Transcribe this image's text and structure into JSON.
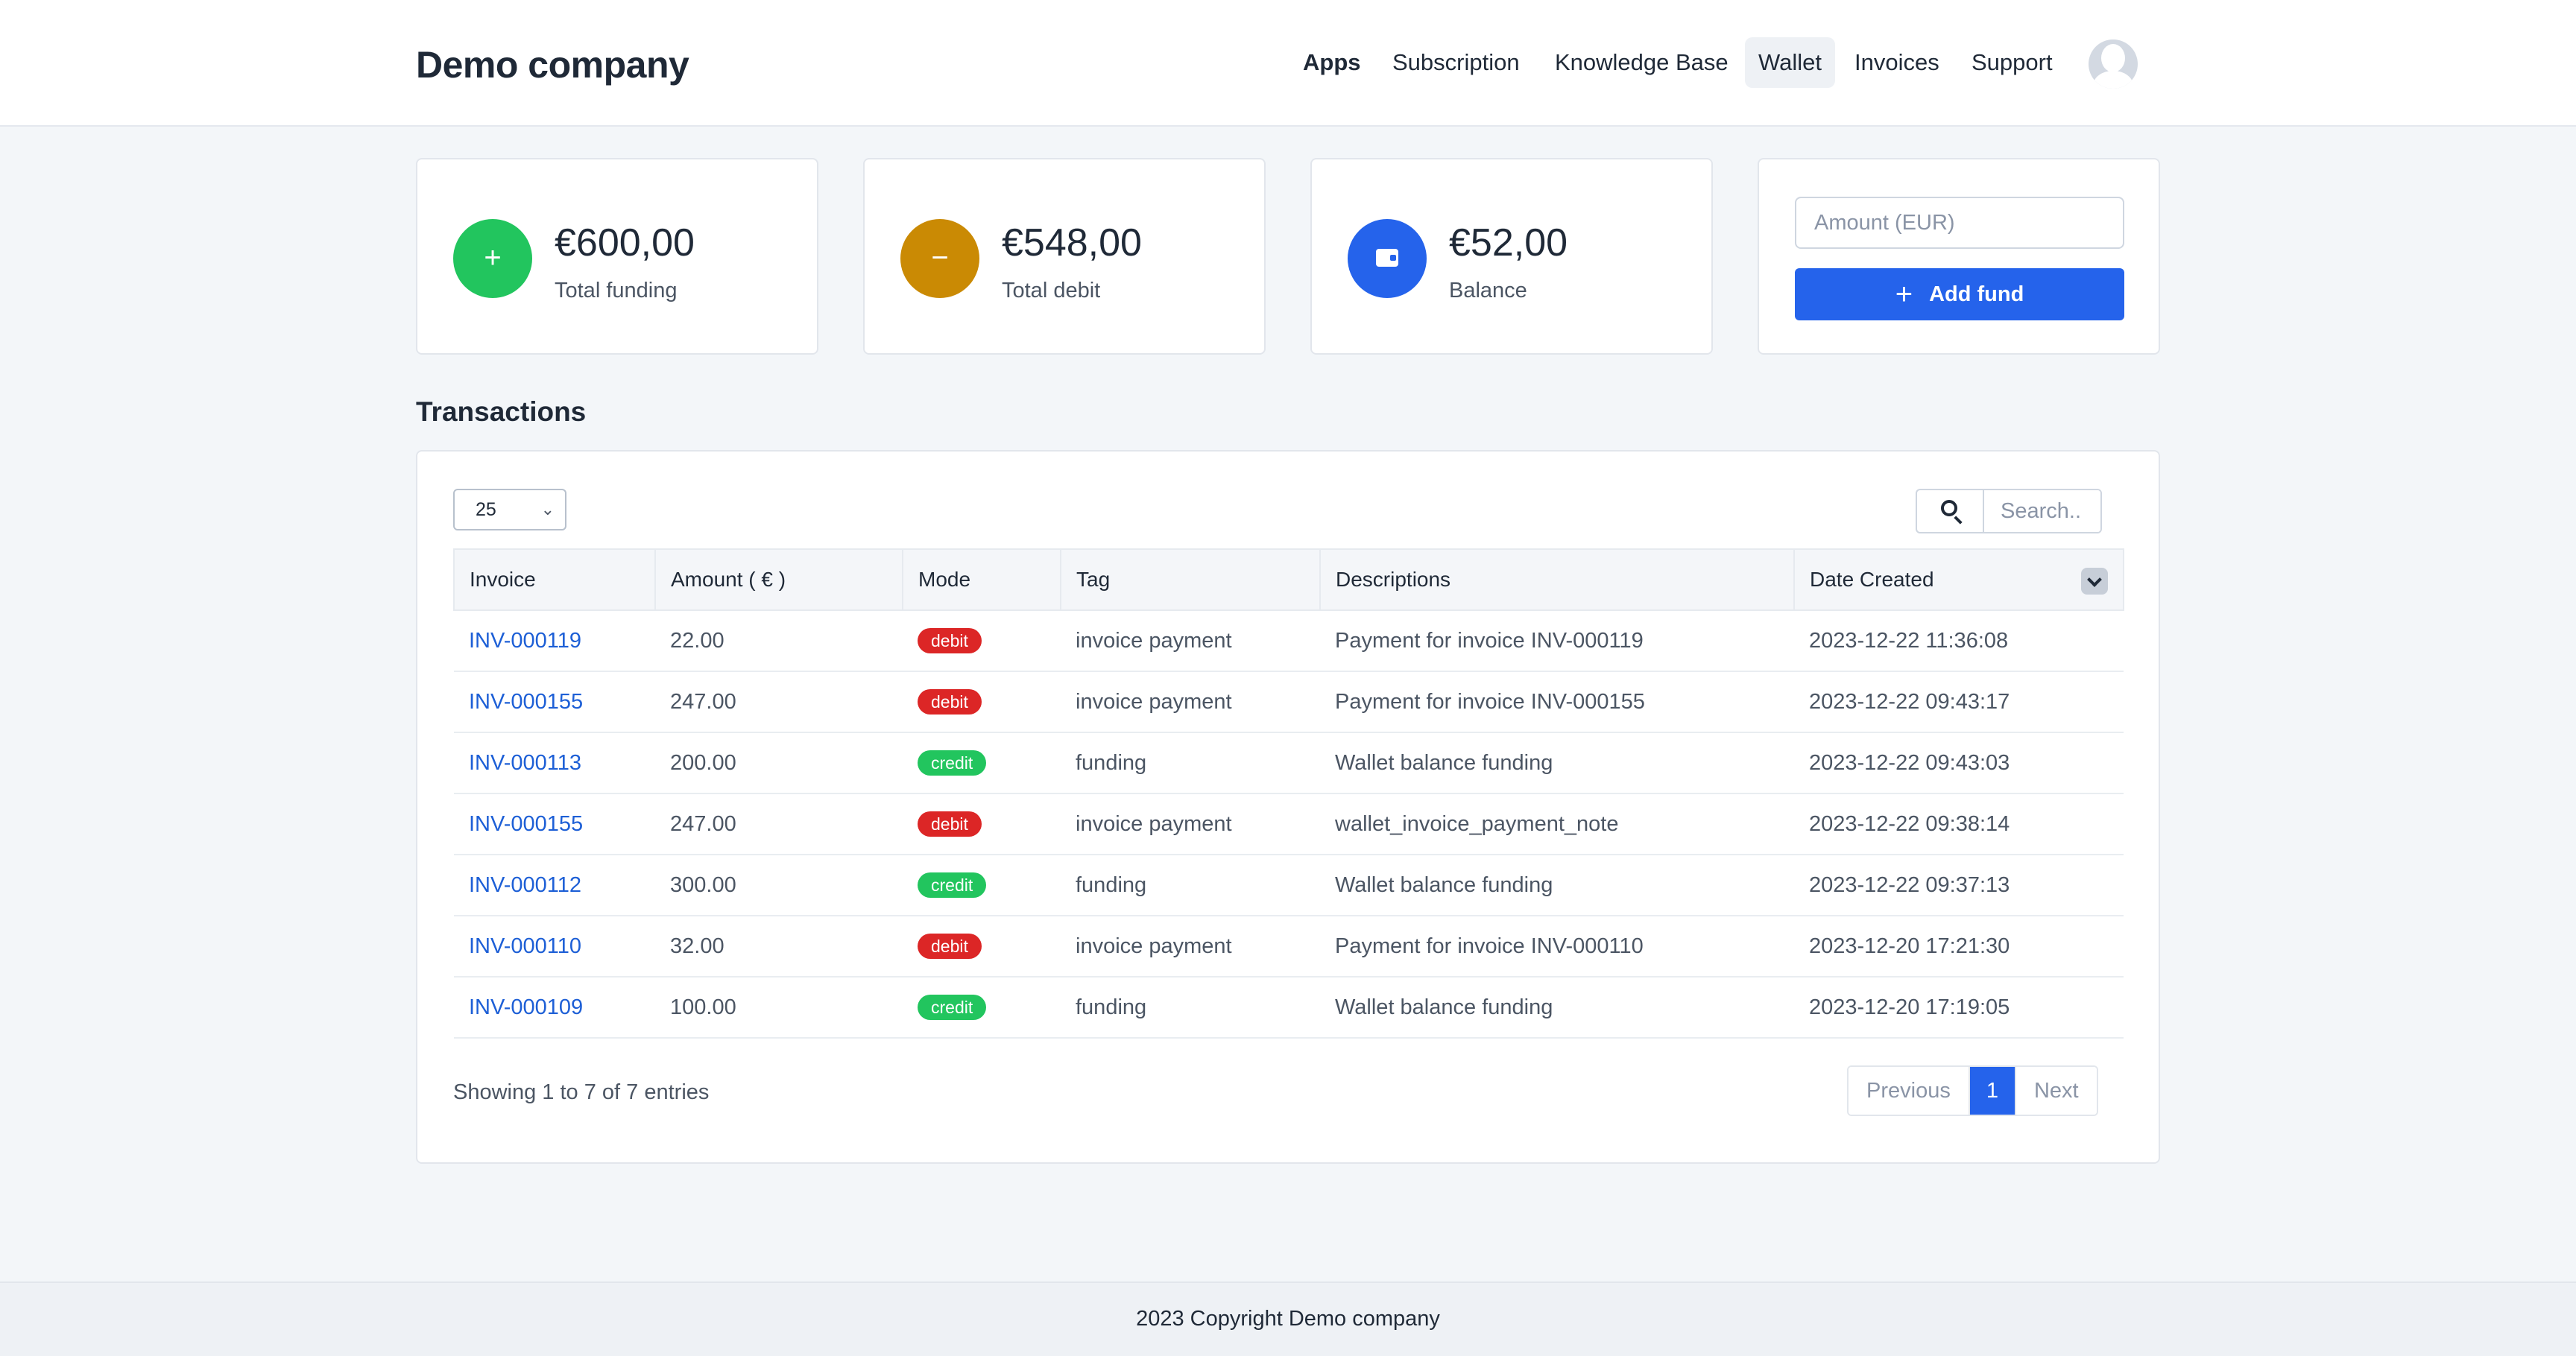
{
  "header": {
    "brand": "Demo company",
    "nav": [
      "Apps",
      "Subscription",
      "Knowledge Base",
      "Wallet",
      "Invoices",
      "Support"
    ]
  },
  "stats": [
    {
      "value": "€600,00",
      "label": "Total funding",
      "icon": "plus-icon",
      "color": "#22c55e"
    },
    {
      "value": "€548,00",
      "label": "Total debit",
      "icon": "minus-icon",
      "color": "#ca8a04"
    },
    {
      "value": "€52,00",
      "label": "Balance",
      "icon": "wallet-icon",
      "color": "#2563eb"
    }
  ],
  "fund": {
    "placeholder": "Amount (EUR)",
    "button_label": "Add fund"
  },
  "transactions": {
    "title": "Transactions",
    "page_size": "25",
    "search_placeholder": "Search..",
    "columns": [
      "Invoice",
      "Amount ( € )",
      "Mode",
      "Tag",
      "Descriptions",
      "Date Created"
    ],
    "rows": [
      {
        "invoice": "INV-000119",
        "amount": "22.00",
        "mode": "debit",
        "tag": "invoice payment",
        "description": "Payment for invoice INV-000119",
        "date": "2023-12-22 11:36:08"
      },
      {
        "invoice": "INV-000155",
        "amount": "247.00",
        "mode": "debit",
        "tag": "invoice payment",
        "description": "Payment for invoice INV-000155",
        "date": "2023-12-22 09:43:17"
      },
      {
        "invoice": "INV-000113",
        "amount": "200.00",
        "mode": "credit",
        "tag": "funding",
        "description": "Wallet balance funding",
        "date": "2023-12-22 09:43:03"
      },
      {
        "invoice": "INV-000155",
        "amount": "247.00",
        "mode": "debit",
        "tag": "invoice payment",
        "description": "wallet_invoice_payment_note",
        "date": "2023-12-22 09:38:14"
      },
      {
        "invoice": "INV-000112",
        "amount": "300.00",
        "mode": "credit",
        "tag": "funding",
        "description": "Wallet balance funding",
        "date": "2023-12-22 09:37:13"
      },
      {
        "invoice": "INV-000110",
        "amount": "32.00",
        "mode": "debit",
        "tag": "invoice payment",
        "description": "Payment for invoice INV-000110",
        "date": "2023-12-20 17:21:30"
      },
      {
        "invoice": "INV-000109",
        "amount": "100.00",
        "mode": "credit",
        "tag": "funding",
        "description": "Wallet balance funding",
        "date": "2023-12-20 17:19:05"
      }
    ],
    "entries_text": "Showing 1 to 7 of 7 entries",
    "pager": {
      "previous": "Previous",
      "current": "1",
      "next": "Next"
    }
  },
  "footer": {
    "text": "2023 Copyright Demo company"
  }
}
